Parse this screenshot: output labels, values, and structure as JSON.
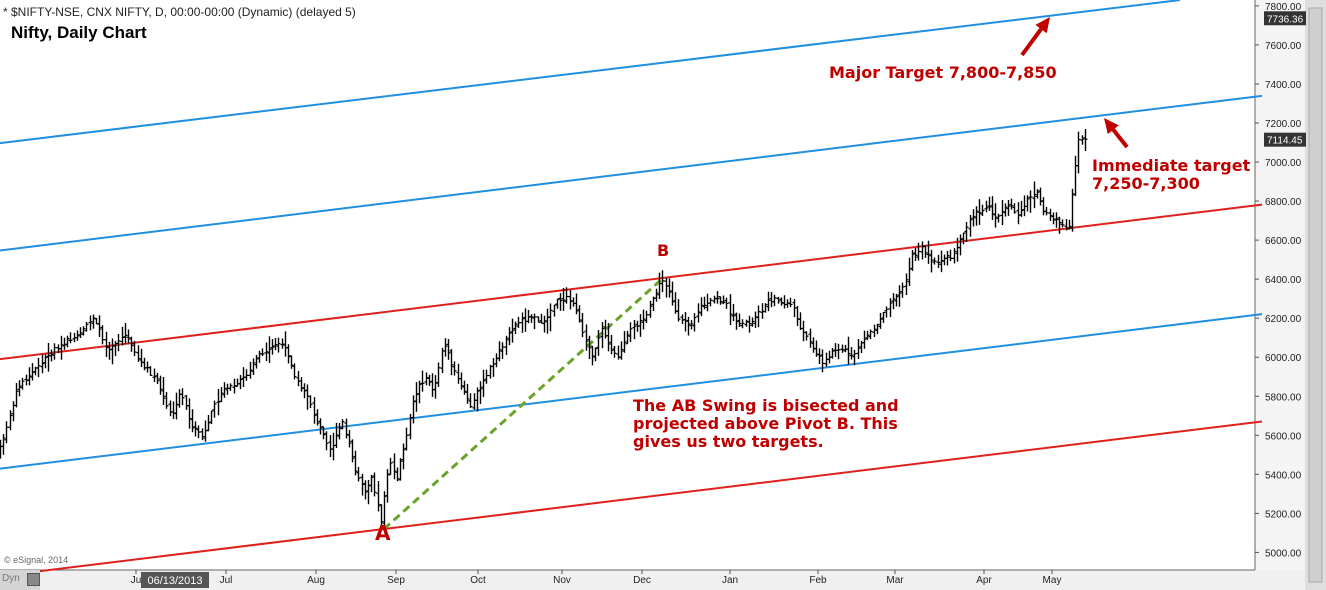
{
  "header": {
    "symbol_line": "* $NIFTY-NSE, CNX NIFTY, D, 00:00-00:00 (Dynamic) (delayed 5)",
    "chart_title": "Nifty, Daily Chart",
    "copyright": "© eSignal, 2014",
    "dyn_label": "Dyn"
  },
  "annotations": {
    "major_target": "Major Target 7,800-7,850",
    "immediate_target_line1": "Immediate target",
    "immediate_target_line2": "7,250-7,300",
    "ab_note_line1": "The AB Swing is bisected and",
    "ab_note_line2": "projected above Pivot B. This",
    "ab_note_line3": "gives us two targets.",
    "pivot_a": "A",
    "pivot_b": "B"
  },
  "colors": {
    "price_bars": "#000000",
    "blue_channel": "#1f8fe0",
    "red_channel": "#e0201c",
    "ab_line": "#6aa22a",
    "annotation": "#c00000",
    "axis_bg": "#f4f4f4"
  },
  "chart_data": {
    "type": "ohlc",
    "title": "Nifty, Daily Chart",
    "ylim": [
      4910,
      7830
    ],
    "y_ticks": [
      "5000.00",
      "5200.00",
      "5400.00",
      "5600.00",
      "5800.00",
      "6000.00",
      "6200.00",
      "6400.00",
      "6600.00",
      "6800.00",
      "7000.00",
      "7200.00",
      "7400.00",
      "7600.00",
      "7800.00"
    ],
    "price_labels": [
      {
        "value": 7736.36,
        "text": "7736.36"
      },
      {
        "value": 7114.45,
        "text": "7114.45"
      }
    ],
    "x_range": [
      0,
      1255
    ],
    "x_ticks": [
      {
        "label": "Ju",
        "x": 136
      },
      {
        "label": "06/13/2013",
        "x": 175,
        "boxed": true
      },
      {
        "label": "Jul",
        "x": 226
      },
      {
        "label": "Aug",
        "x": 316
      },
      {
        "label": "Sep",
        "x": 396
      },
      {
        "label": "Oct",
        "x": 478
      },
      {
        "label": "Nov",
        "x": 562
      },
      {
        "label": "Dec",
        "x": 642
      },
      {
        "label": "Jan",
        "x": 730
      },
      {
        "label": "Feb",
        "x": 818
      },
      {
        "label": "Mar",
        "x": 895
      },
      {
        "label": "Apr",
        "x": 984
      },
      {
        "label": "May",
        "x": 1052
      }
    ],
    "channels": [
      {
        "name": "blue-upper",
        "color": "blue",
        "x1": 0,
        "y1": 7097,
        "x2": 1180,
        "y2": 7830
      },
      {
        "name": "blue-mid",
        "color": "blue",
        "x1": 0,
        "y1": 6547,
        "x2": 1262,
        "y2": 7339
      },
      {
        "name": "red-upper",
        "color": "red",
        "x1": 0,
        "y1": 5990,
        "x2": 1262,
        "y2": 6782
      },
      {
        "name": "blue-lower",
        "color": "blue",
        "x1": 0,
        "y1": 5429,
        "x2": 1262,
        "y2": 6221
      },
      {
        "name": "red-lower",
        "color": "red",
        "x1": 0,
        "y1": 4879,
        "x2": 1262,
        "y2": 5671
      }
    ],
    "ab_swing": {
      "x1": 384,
      "y1": 5120,
      "x2": 664,
      "y2": 6410
    },
    "anchors": [
      [
        0,
        5500
      ],
      [
        8,
        5610
      ],
      [
        20,
        5840
      ],
      [
        40,
        5950
      ],
      [
        60,
        6050
      ],
      [
        80,
        6120
      ],
      [
        98,
        6200
      ],
      [
        110,
        6020
      ],
      [
        128,
        6120
      ],
      [
        140,
        6000
      ],
      [
        160,
        5880
      ],
      [
        174,
        5700
      ],
      [
        184,
        5820
      ],
      [
        195,
        5650
      ],
      [
        205,
        5600
      ],
      [
        215,
        5720
      ],
      [
        225,
        5830
      ],
      [
        236,
        5860
      ],
      [
        250,
        5910
      ],
      [
        262,
        6020
      ],
      [
        285,
        6080
      ],
      [
        298,
        5900
      ],
      [
        310,
        5800
      ],
      [
        322,
        5640
      ],
      [
        333,
        5520
      ],
      [
        345,
        5680
      ],
      [
        352,
        5560
      ],
      [
        358,
        5420
      ],
      [
        368,
        5300
      ],
      [
        375,
        5380
      ],
      [
        384,
        5150
      ],
      [
        392,
        5480
      ],
      [
        400,
        5380
      ],
      [
        410,
        5620
      ],
      [
        417,
        5800
      ],
      [
        428,
        5900
      ],
      [
        437,
        5830
      ],
      [
        447,
        6080
      ],
      [
        455,
        5960
      ],
      [
        463,
        5870
      ],
      [
        474,
        5750
      ],
      [
        486,
        5880
      ],
      [
        498,
        5990
      ],
      [
        508,
        6080
      ],
      [
        520,
        6180
      ],
      [
        535,
        6200
      ],
      [
        548,
        6180
      ],
      [
        560,
        6290
      ],
      [
        570,
        6310
      ],
      [
        580,
        6240
      ],
      [
        590,
        6060
      ],
      [
        596,
        5990
      ],
      [
        605,
        6160
      ],
      [
        612,
        6060
      ],
      [
        620,
        6000
      ],
      [
        630,
        6120
      ],
      [
        640,
        6160
      ],
      [
        650,
        6230
      ],
      [
        658,
        6320
      ],
      [
        664,
        6400
      ],
      [
        672,
        6330
      ],
      [
        682,
        6200
      ],
      [
        693,
        6150
      ],
      [
        703,
        6260
      ],
      [
        715,
        6300
      ],
      [
        727,
        6290
      ],
      [
        735,
        6210
      ],
      [
        746,
        6170
      ],
      [
        756,
        6180
      ],
      [
        764,
        6240
      ],
      [
        775,
        6300
      ],
      [
        785,
        6280
      ],
      [
        795,
        6270
      ],
      [
        805,
        6130
      ],
      [
        815,
        6060
      ],
      [
        825,
        5970
      ],
      [
        835,
        6020
      ],
      [
        848,
        6050
      ],
      [
        856,
        6000
      ],
      [
        866,
        6090
      ],
      [
        880,
        6160
      ],
      [
        890,
        6250
      ],
      [
        900,
        6310
      ],
      [
        908,
        6380
      ],
      [
        915,
        6520
      ],
      [
        925,
        6560
      ],
      [
        935,
        6490
      ],
      [
        945,
        6500
      ],
      [
        955,
        6520
      ],
      [
        965,
        6610
      ],
      [
        975,
        6720
      ],
      [
        990,
        6780
      ],
      [
        1000,
        6710
      ],
      [
        1012,
        6790
      ],
      [
        1020,
        6730
      ],
      [
        1030,
        6800
      ],
      [
        1040,
        6850
      ],
      [
        1045,
        6760
      ],
      [
        1055,
        6710
      ],
      [
        1065,
        6680
      ],
      [
        1072,
        6670
      ],
      [
        1076,
        6890
      ],
      [
        1079,
        7010
      ],
      [
        1082,
        7130
      ],
      [
        1086,
        7110
      ]
    ]
  }
}
